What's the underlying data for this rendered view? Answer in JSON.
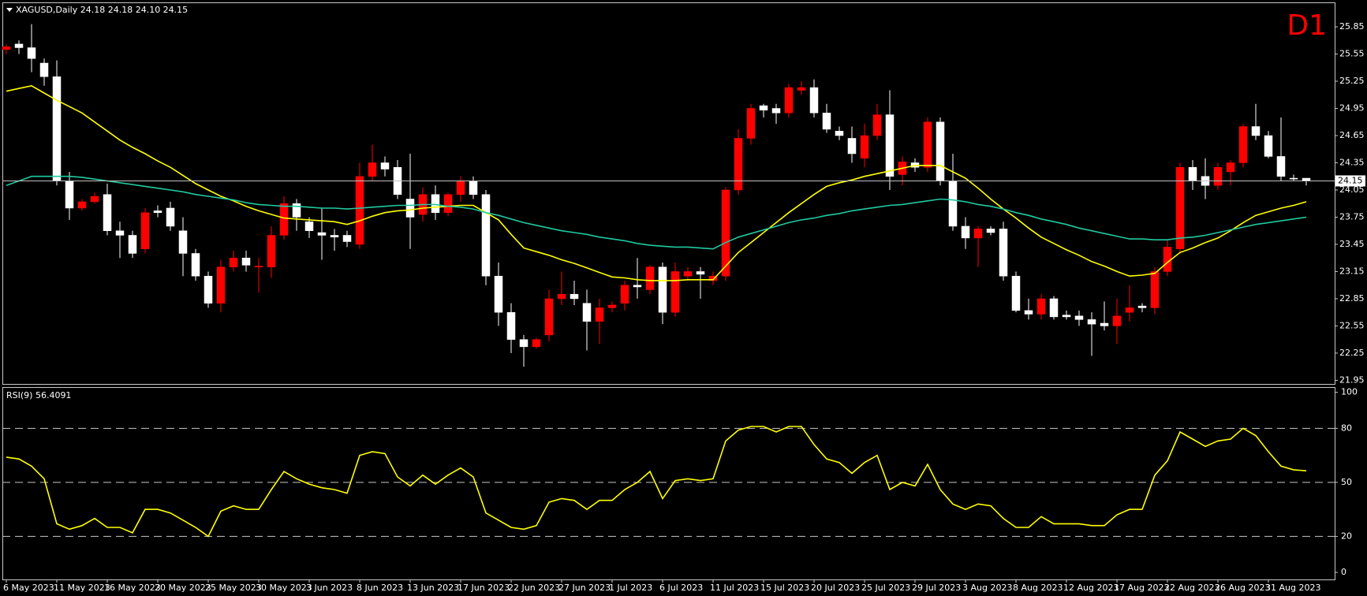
{
  "chart_data": [
    {
      "type": "candlestick",
      "title": "XAGUSD,Daily  24.18 24.18 24.10 24.15",
      "timeframe": "D1",
      "categories": [
        "6 May 2023",
        null,
        null,
        null,
        "11 May 2023",
        null,
        null,
        null,
        "16 May 2023",
        null,
        null,
        null,
        "20 May 2023",
        null,
        null,
        null,
        "25 May 2023",
        null,
        null,
        null,
        "30 May 2023",
        null,
        null,
        null,
        "3 Jun 2023",
        null,
        null,
        null,
        "8 Jun 2023",
        null,
        null,
        null,
        "13 Jun 2023",
        null,
        null,
        null,
        "17 Jun 2023",
        null,
        null,
        null,
        "22 Jun 2023",
        null,
        null,
        null,
        "27 Jun 2023",
        null,
        null,
        null,
        "1 Jul 2023",
        null,
        null,
        null,
        "6 Jul 2023",
        null,
        null,
        null,
        "11 Jul 2023",
        null,
        null,
        null,
        "15 Jul 2023",
        null,
        null,
        null,
        "20 Jul 2023",
        null,
        null,
        null,
        "25 Jul 2023",
        null,
        null,
        null,
        "29 Jul 2023",
        null,
        null,
        null,
        "3 Aug 2023",
        null,
        null,
        null,
        "8 Aug 2023",
        null,
        null,
        null,
        "12 Aug 2023",
        null,
        null,
        null,
        "17 Aug 2023",
        null,
        null,
        null,
        "22 Aug 2023",
        null,
        null,
        null,
        "26 Aug 2023",
        null,
        null,
        null,
        "31 Aug 2023",
        null,
        null,
        null
      ],
      "open": [
        25.6,
        25.66,
        25.62,
        25.45,
        25.3,
        24.15,
        23.85,
        23.92,
        24.0,
        23.6,
        23.55,
        23.4,
        23.82,
        23.85,
        23.6,
        23.35,
        23.1,
        22.8,
        23.2,
        23.3,
        23.2,
        23.2,
        23.55,
        23.9,
        23.7,
        23.58,
        23.55,
        23.55,
        23.45,
        24.2,
        24.35,
        24.3,
        23.95,
        23.78,
        24.0,
        23.8,
        24.0,
        24.15,
        24.0,
        23.1,
        22.7,
        22.4,
        22.32,
        22.45,
        22.85,
        22.9,
        22.8,
        22.6,
        22.75,
        22.8,
        23.0,
        22.95,
        23.2,
        22.7,
        23.1,
        23.15,
        23.05,
        23.1,
        24.05,
        24.62,
        24.98,
        24.95,
        24.9,
        25.15,
        25.18,
        24.9,
        24.7,
        24.62,
        24.4,
        24.65,
        24.88,
        24.22,
        24.35,
        24.3,
        24.8,
        24.15,
        23.65,
        23.52,
        23.62,
        23.62,
        23.1,
        22.72,
        22.68,
        22.85,
        22.67,
        22.66,
        22.62,
        22.58,
        22.55,
        22.7,
        22.77,
        22.75,
        23.15,
        23.4,
        24.3,
        24.2,
        24.1,
        24.25,
        24.35,
        24.75,
        24.65,
        24.42,
        24.18,
        24.18
      ],
      "high": [
        25.66,
        25.7,
        25.88,
        25.5,
        25.48,
        24.25,
        23.95,
        24.02,
        24.12,
        23.7,
        23.6,
        23.85,
        23.88,
        23.92,
        23.75,
        23.4,
        23.15,
        23.28,
        23.38,
        23.38,
        23.3,
        23.65,
        23.98,
        23.95,
        23.75,
        23.85,
        23.62,
        23.6,
        24.35,
        24.55,
        24.42,
        24.38,
        24.45,
        24.08,
        24.1,
        24.02,
        24.2,
        24.2,
        24.05,
        23.25,
        22.8,
        22.45,
        22.42,
        22.95,
        23.15,
        23.05,
        22.95,
        22.85,
        22.82,
        23.05,
        23.3,
        23.22,
        23.25,
        23.25,
        23.2,
        23.2,
        23.15,
        24.08,
        24.72,
        25.0,
        25.0,
        25.0,
        25.22,
        25.25,
        25.27,
        25.0,
        24.75,
        24.75,
        24.78,
        25.0,
        25.15,
        24.42,
        24.4,
        24.85,
        24.85,
        24.45,
        23.75,
        23.65,
        23.65,
        23.7,
        23.15,
        22.85,
        22.9,
        22.88,
        22.72,
        22.72,
        22.7,
        22.82,
        22.85,
        23.0,
        22.8,
        23.2,
        23.5,
        24.35,
        24.38,
        24.4,
        24.35,
        24.38,
        24.78,
        25.0,
        24.7,
        24.85,
        24.22,
        24.18
      ],
      "low": [
        25.55,
        25.55,
        25.35,
        25.2,
        24.1,
        23.72,
        23.82,
        23.9,
        23.55,
        23.3,
        23.3,
        23.35,
        23.75,
        23.6,
        23.1,
        23.05,
        22.75,
        22.7,
        23.15,
        23.15,
        22.92,
        23.08,
        23.5,
        23.6,
        23.52,
        23.28,
        23.38,
        23.42,
        23.4,
        24.15,
        24.2,
        23.95,
        23.4,
        23.7,
        23.72,
        23.76,
        23.92,
        23.95,
        23.0,
        22.55,
        22.25,
        22.1,
        22.3,
        22.38,
        22.78,
        22.78,
        22.28,
        22.35,
        22.7,
        22.72,
        22.85,
        22.9,
        22.57,
        22.65,
        23.05,
        22.85,
        23.0,
        23.05,
        24.0,
        24.55,
        24.85,
        24.78,
        24.85,
        25.1,
        24.85,
        24.68,
        24.6,
        24.35,
        24.3,
        24.6,
        24.05,
        24.1,
        24.25,
        24.25,
        24.1,
        23.6,
        23.4,
        23.2,
        23.55,
        23.05,
        22.7,
        22.62,
        22.62,
        22.62,
        22.62,
        22.55,
        22.22,
        22.5,
        22.35,
        22.6,
        22.7,
        22.68,
        23.1,
        23.35,
        24.05,
        23.95,
        24.05,
        24.1,
        24.3,
        24.6,
        24.4,
        24.15,
        24.15,
        24.1
      ],
      "close": [
        25.63,
        25.62,
        25.5,
        25.3,
        24.15,
        23.85,
        23.92,
        23.98,
        23.6,
        23.55,
        23.35,
        23.8,
        23.8,
        23.65,
        23.35,
        23.1,
        22.8,
        23.2,
        23.3,
        23.22,
        23.21,
        23.55,
        23.9,
        23.75,
        23.6,
        23.55,
        23.53,
        23.48,
        24.2,
        24.35,
        24.28,
        24.0,
        23.75,
        24.0,
        23.8,
        24.0,
        24.15,
        24.0,
        23.1,
        22.7,
        22.4,
        22.32,
        22.4,
        22.85,
        22.9,
        22.85,
        22.6,
        22.75,
        22.78,
        23.0,
        22.98,
        23.2,
        22.7,
        23.15,
        23.15,
        23.12,
        23.1,
        24.05,
        24.62,
        24.95,
        24.93,
        24.9,
        25.18,
        25.18,
        24.9,
        24.72,
        24.65,
        24.45,
        24.65,
        24.88,
        24.2,
        24.36,
        24.3,
        24.8,
        24.15,
        23.65,
        23.52,
        23.62,
        23.58,
        23.1,
        22.72,
        22.68,
        22.85,
        22.65,
        22.65,
        22.62,
        22.57,
        22.55,
        22.66,
        22.75,
        22.75,
        23.15,
        23.42,
        24.3,
        24.15,
        24.1,
        24.3,
        24.35,
        24.75,
        24.65,
        24.42,
        24.2,
        24.17,
        24.15
      ],
      "up_color": "#ff0000",
      "down_color": "#ffffff",
      "lines": [
        {
          "color": "#ffff00",
          "values": [
            25.14,
            25.17,
            25.2,
            25.12,
            25.04,
            24.97,
            24.9,
            24.8,
            24.7,
            24.6,
            24.52,
            24.45,
            24.37,
            24.3,
            24.21,
            24.12,
            24.05,
            23.98,
            23.93,
            23.87,
            23.82,
            23.78,
            23.74,
            23.73,
            23.72,
            23.71,
            23.7,
            23.67,
            23.71,
            23.76,
            23.8,
            23.82,
            23.83,
            23.85,
            23.86,
            23.87,
            23.88,
            23.88,
            23.8,
            23.72,
            23.56,
            23.41,
            23.37,
            23.33,
            23.28,
            23.24,
            23.19,
            23.14,
            23.09,
            23.08,
            23.06,
            23.05,
            23.05,
            23.05,
            23.06,
            23.06,
            23.06,
            23.21,
            23.36,
            23.47,
            23.58,
            23.69,
            23.8,
            23.9,
            24.0,
            24.09,
            24.13,
            24.16,
            24.2,
            24.23,
            24.26,
            24.29,
            24.32,
            24.32,
            24.32,
            24.25,
            24.18,
            24.07,
            23.95,
            23.84,
            23.74,
            23.63,
            23.53,
            23.46,
            23.39,
            23.33,
            23.26,
            23.21,
            23.15,
            23.1,
            23.11,
            23.13,
            23.25,
            23.36,
            23.41,
            23.47,
            23.52,
            23.6,
            23.69,
            23.77,
            23.81,
            23.85,
            23.88,
            23.92
          ]
        },
        {
          "color": "#20c9a0",
          "values": [
            24.1,
            24.15,
            24.2,
            24.2,
            24.2,
            24.2,
            24.19,
            24.17,
            24.15,
            24.13,
            24.11,
            24.09,
            24.07,
            24.05,
            24.03,
            24.0,
            23.98,
            23.96,
            23.94,
            23.91,
            23.89,
            23.88,
            23.87,
            23.87,
            23.86,
            23.85,
            23.85,
            23.84,
            23.85,
            23.86,
            23.87,
            23.88,
            23.88,
            23.89,
            23.89,
            23.87,
            23.86,
            23.84,
            23.8,
            23.77,
            23.73,
            23.69,
            23.66,
            23.63,
            23.6,
            23.58,
            23.56,
            23.53,
            23.51,
            23.49,
            23.46,
            23.44,
            23.43,
            23.42,
            23.42,
            23.41,
            23.4,
            23.47,
            23.53,
            23.57,
            23.61,
            23.65,
            23.69,
            23.72,
            23.74,
            23.77,
            23.79,
            23.82,
            23.84,
            23.86,
            23.88,
            23.89,
            23.91,
            23.93,
            23.95,
            23.94,
            23.92,
            23.89,
            23.87,
            23.84,
            23.8,
            23.77,
            23.73,
            23.7,
            23.67,
            23.63,
            23.6,
            23.57,
            23.54,
            23.51,
            23.51,
            23.5,
            23.5,
            23.52,
            23.53,
            23.55,
            23.58,
            23.61,
            23.64,
            23.67,
            23.69,
            23.71,
            23.73,
            23.75
          ]
        }
      ],
      "last_price": 24.15,
      "last_price_color": "#c0c0c0",
      "ylim": [
        21.91,
        26.12
      ],
      "yticks": [
        25.85,
        25.55,
        25.25,
        24.95,
        24.65,
        24.35,
        24.05,
        23.75,
        23.45,
        23.15,
        22.85,
        22.55,
        22.25,
        21.95
      ]
    },
    {
      "type": "line",
      "title": "RSI(9) 56.4091",
      "color": "#ffff00",
      "values": [
        64,
        63,
        59,
        52,
        27,
        24,
        26,
        30,
        25,
        25,
        22,
        35,
        35,
        33,
        29,
        25,
        20,
        34,
        37,
        35,
        35,
        46,
        56,
        52,
        49,
        47,
        46,
        44,
        65,
        67,
        66,
        53,
        48,
        54,
        49,
        54,
        58,
        53,
        33,
        29,
        25,
        24,
        26,
        39,
        41,
        40,
        35,
        40,
        40,
        46,
        50,
        56,
        41,
        51,
        52,
        51,
        52,
        73,
        79,
        81,
        81,
        78,
        81,
        81,
        71,
        63,
        61,
        55,
        61,
        65,
        46,
        50,
        48,
        60,
        46,
        38,
        35,
        38,
        37,
        30,
        25,
        25,
        31,
        27,
        27,
        27,
        26,
        26,
        32,
        35,
        35,
        54,
        62,
        78,
        74,
        70,
        73,
        74,
        80,
        76,
        67,
        59,
        57,
        56.4091
      ],
      "ylim": [
        -3.9,
        102.9
      ],
      "yticks": [
        100,
        80,
        50,
        20,
        0
      ],
      "grid": "dashed"
    }
  ]
}
